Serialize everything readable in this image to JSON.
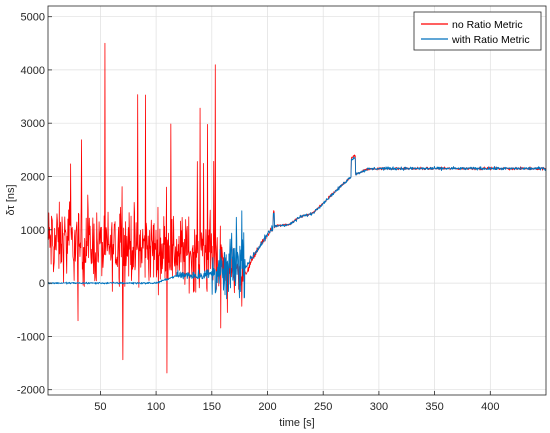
{
  "chart_data": {
    "type": "line",
    "title": "",
    "xlabel": "time [s]",
    "ylabel": "δτ [ns]",
    "xlim": [
      3,
      450
    ],
    "ylim": [
      -2100,
      5200
    ],
    "xticks": [
      50,
      100,
      150,
      200,
      250,
      300,
      350,
      400
    ],
    "yticks": [
      -2000,
      -1000,
      0,
      1000,
      2000,
      3000,
      4000,
      5000
    ],
    "grid": true,
    "legend_position": "top-right",
    "series": [
      {
        "name": "no Ratio Metric",
        "color": "#ff0000",
        "description_points": {
          "x": [
            3,
            20,
            40,
            60,
            80,
            100,
            120,
            140,
            155,
            162,
            170,
            175,
            180,
            190,
            200,
            205,
            210,
            220,
            230,
            240,
            250,
            260,
            270,
            275,
            280,
            290,
            300,
            350,
            400,
            450
          ],
          "y": [
            800,
            750,
            700,
            650,
            700,
            650,
            600,
            550,
            500,
            300,
            200,
            150,
            150,
            600,
            900,
            1050,
            1080,
            1100,
            1250,
            1300,
            1500,
            1700,
            1900,
            2000,
            2050,
            2140,
            2150,
            2150,
            2150,
            2150
          ]
        },
        "noise_amplitude_t_lt_160": 1300
      },
      {
        "name": "with Ratio Metric",
        "color": "#0072bd",
        "description_points": {
          "x": [
            3,
            50,
            100,
            120,
            140,
            155,
            162,
            170,
            180,
            190,
            200,
            205,
            210,
            220,
            230,
            240,
            250,
            260,
            270,
            275,
            280,
            290,
            300,
            350,
            400,
            450
          ],
          "y": [
            0,
            0,
            0,
            150,
            150,
            180,
            200,
            400,
            300,
            600,
            900,
            1050,
            1080,
            1100,
            1250,
            1300,
            1500,
            1700,
            1900,
            2000,
            2050,
            2140,
            2150,
            2150,
            2150,
            2150
          ]
        }
      }
    ]
  }
}
